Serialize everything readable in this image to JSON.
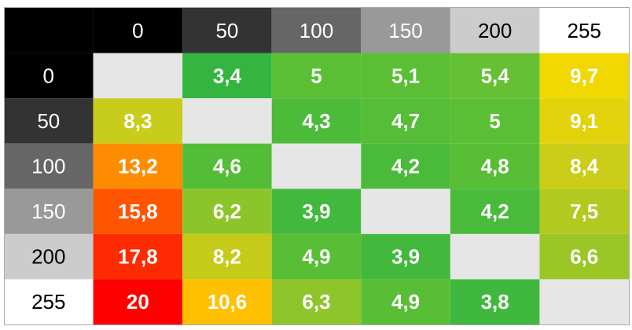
{
  "table": {
    "columns": [
      {
        "label": "0",
        "background": "#000000",
        "color": "#ffffff"
      },
      {
        "label": "50",
        "background": "#333333",
        "color": "#ffffff"
      },
      {
        "label": "100",
        "background": "#666666",
        "color": "#ffffff"
      },
      {
        "label": "150",
        "background": "#999999",
        "color": "#ffffff"
      },
      {
        "label": "200",
        "background": "#cccccc",
        "color": "#000000"
      },
      {
        "label": "255",
        "background": "#ffffff",
        "color": "#000000"
      }
    ],
    "corner_background": "#000000",
    "empty_background": "#e6e6e6",
    "rows": [
      {
        "label": "0",
        "background": "#000000",
        "color": "#ffffff",
        "cells": [
          {
            "text": null
          },
          {
            "text": "3,4",
            "background": "#33b540"
          },
          {
            "text": "5",
            "background": "#5abf35"
          },
          {
            "text": "5,1",
            "background": "#5abf35"
          },
          {
            "text": "5,4",
            "background": "#66c033"
          },
          {
            "text": "9,7",
            "background": "#f0d800"
          }
        ]
      },
      {
        "label": "50",
        "background": "#333333",
        "color": "#ffffff",
        "cells": [
          {
            "text": "8,3",
            "background": "#c8cc1a"
          },
          {
            "text": null
          },
          {
            "text": "4,3",
            "background": "#4cbb3a"
          },
          {
            "text": "4,7",
            "background": "#55bd37"
          },
          {
            "text": "5",
            "background": "#5abf35"
          },
          {
            "text": "9,1",
            "background": "#e2d20c"
          }
        ]
      },
      {
        "label": "100",
        "background": "#666666",
        "color": "#ffffff",
        "cells": [
          {
            "text": "13,2",
            "background": "#ff8c00"
          },
          {
            "text": "4,6",
            "background": "#53bd38"
          },
          {
            "text": null
          },
          {
            "text": "4,2",
            "background": "#4aba3b"
          },
          {
            "text": "4,8",
            "background": "#57be36"
          },
          {
            "text": "8,4",
            "background": "#cccd18"
          }
        ]
      },
      {
        "label": "150",
        "background": "#999999",
        "color": "#ffffff",
        "cells": [
          {
            "text": "15,8",
            "background": "#ff5500"
          },
          {
            "text": "6,2",
            "background": "#8cc52a"
          },
          {
            "text": "3,9",
            "background": "#42b83d"
          },
          {
            "text": null
          },
          {
            "text": "4,2",
            "background": "#4aba3b"
          },
          {
            "text": "7,5",
            "background": "#b2c91f"
          }
        ]
      },
      {
        "label": "200",
        "background": "#cccccc",
        "color": "#000000",
        "cells": [
          {
            "text": "17,8",
            "background": "#ff2a00"
          },
          {
            "text": "8,2",
            "background": "#c6cb1a"
          },
          {
            "text": "4,9",
            "background": "#58be36"
          },
          {
            "text": "3,9",
            "background": "#42b83d"
          },
          {
            "text": null
          },
          {
            "text": "6,6",
            "background": "#9ac726"
          }
        ]
      },
      {
        "label": "255",
        "background": "#ffffff",
        "color": "#000000",
        "cells": [
          {
            "text": "20",
            "background": "#ff0000"
          },
          {
            "text": "10,6",
            "background": "#ffc000"
          },
          {
            "text": "6,3",
            "background": "#8ec52a"
          },
          {
            "text": "4,9",
            "background": "#58be36"
          },
          {
            "text": "3,8",
            "background": "#40b83e"
          },
          {
            "text": null
          }
        ]
      }
    ]
  }
}
